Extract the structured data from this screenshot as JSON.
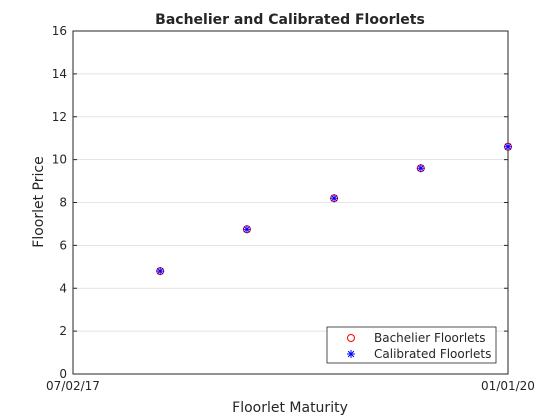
{
  "chart_data": {
    "type": "scatter",
    "title": "Bachelier and Calibrated Floorlets",
    "xlabel": "Floorlet Maturity",
    "ylabel": "Floorlet Price",
    "x_tick_labels": [
      "07/02/17",
      "01/01/20"
    ],
    "ylim": [
      0,
      16
    ],
    "y_ticks": [
      0,
      2,
      4,
      6,
      8,
      10,
      12,
      14,
      16
    ],
    "grid": true,
    "legend_position": "bottom-right",
    "series": [
      {
        "name": "Bachelier Floorlets",
        "marker": "circle",
        "color": "#ff0000",
        "x": [
          "2018-01-01",
          "2018-07-02",
          "2019-01-01",
          "2019-07-02",
          "2020-01-01"
        ],
        "y": [
          4.8,
          6.75,
          8.2,
          9.6,
          10.6
        ]
      },
      {
        "name": "Calibrated Floorlets",
        "marker": "asterisk",
        "color": "#0000ff",
        "x": [
          "2018-01-01",
          "2018-07-02",
          "2019-01-01",
          "2019-07-02",
          "2020-01-01"
        ],
        "y": [
          4.8,
          6.75,
          8.2,
          9.6,
          10.6
        ]
      }
    ]
  }
}
